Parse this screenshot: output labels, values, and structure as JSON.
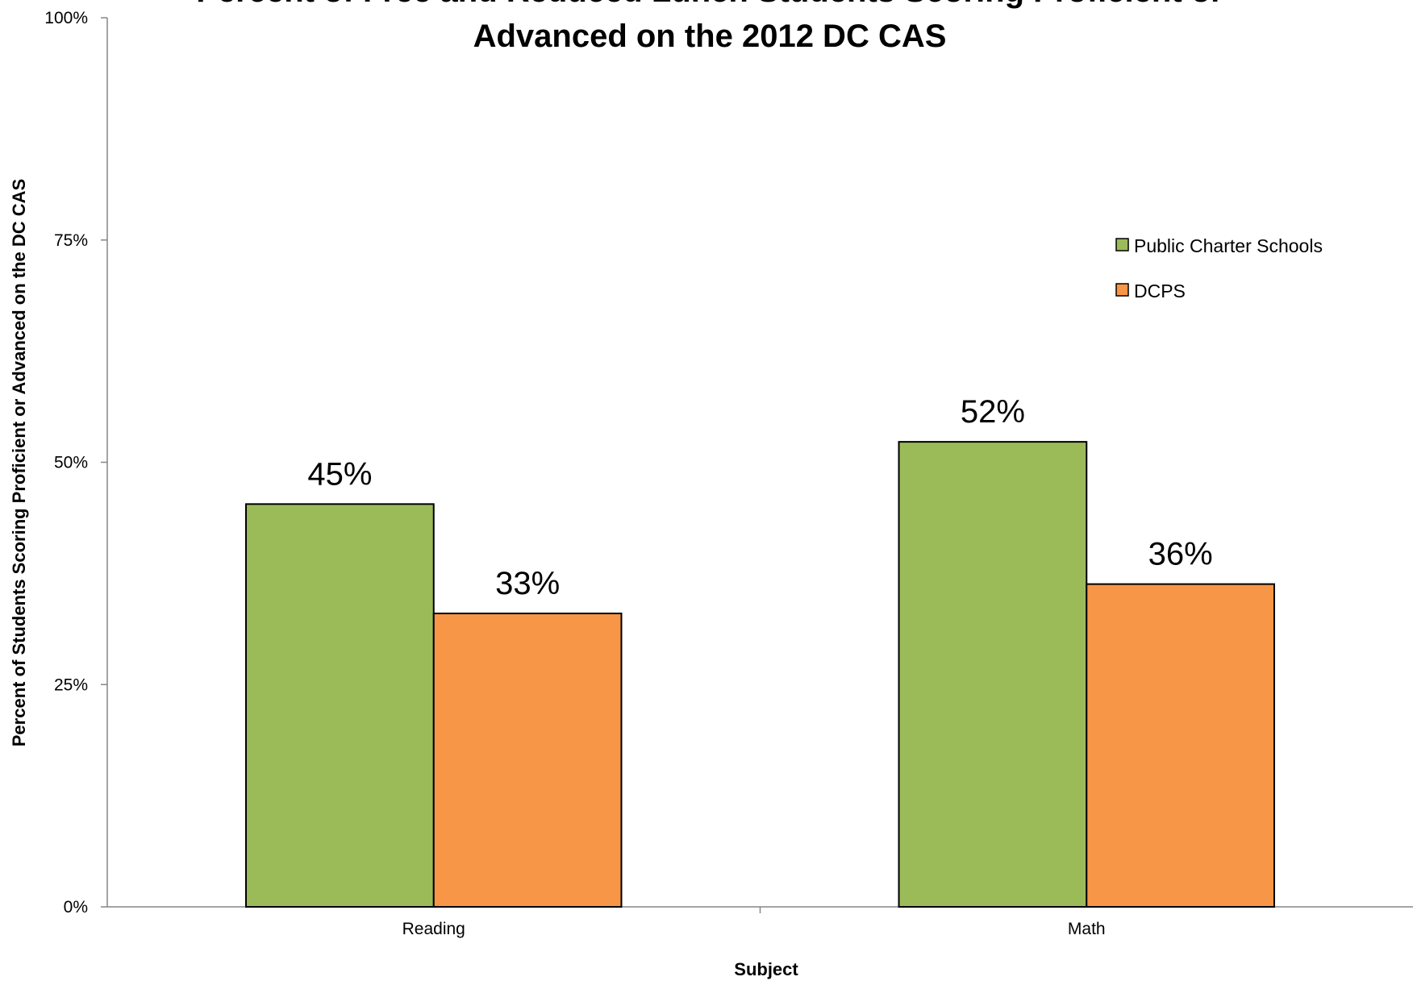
{
  "chart_data": {
    "type": "bar",
    "title_lines": [
      "Percent of Free and Reduced Lunch Students Scoring Proficient or",
      "Advanced on the 2012 DC CAS"
    ],
    "xlabel": "Subject",
    "ylabel": "Percent of Students Scoring Proficient or Advanced on the DC CAS",
    "categories": [
      "Reading",
      "Math"
    ],
    "ylim": [
      0,
      1
    ],
    "yticks": [
      {
        "value": 0,
        "label": "0%"
      },
      {
        "value": 0.25,
        "label": "25%"
      },
      {
        "value": 0.5,
        "label": "50%"
      },
      {
        "value": 0.75,
        "label": "75%"
      },
      {
        "value": 1,
        "label": "100%"
      }
    ],
    "series": [
      {
        "name": "Public Charter Schools",
        "color": "#9bbb59",
        "values": [
          0.453,
          0.523
        ],
        "labels": [
          "45%",
          "52%"
        ]
      },
      {
        "name": "DCPS",
        "color": "#f79646",
        "values": [
          0.33,
          0.363
        ],
        "labels": [
          "33%",
          "36%"
        ]
      }
    ],
    "legend_position": "right",
    "grid": false
  }
}
